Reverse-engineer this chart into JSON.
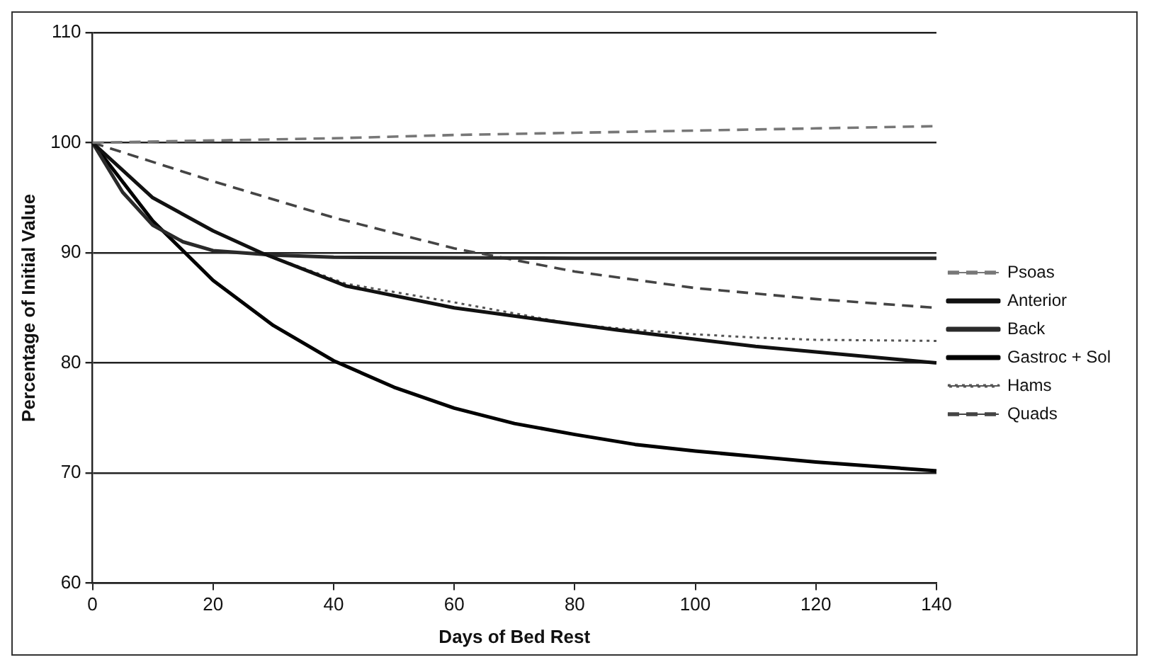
{
  "chart_data": {
    "type": "line",
    "xlabel": "Days of Bed Rest",
    "ylabel": "Percentage of Initial Value",
    "xlim": [
      0,
      140
    ],
    "xticks": [
      0,
      20,
      40,
      60,
      80,
      100,
      120,
      140
    ],
    "ylim": [
      60,
      110
    ],
    "yticks": [
      60,
      70,
      80,
      90,
      100,
      110
    ],
    "grid": "y",
    "legend": "right",
    "marker": "none",
    "series": [
      {
        "name": "Psoas",
        "color": "#777777",
        "line_style": "dashed",
        "x": [
          0,
          20,
          40,
          60,
          80,
          100,
          120,
          140
        ],
        "values": [
          100,
          100.2,
          100.4,
          100.7,
          100.9,
          101.1,
          101.3,
          101.5
        ]
      },
      {
        "name": "Anterior",
        "color": "#111111",
        "line_style": "solid",
        "x": [
          0,
          5,
          10,
          20,
          28,
          42,
          60,
          87,
          110,
          140
        ],
        "values": [
          100,
          97.5,
          95,
          92,
          90,
          87,
          85,
          83,
          81.5,
          80
        ]
      },
      {
        "name": "Back",
        "color": "#2a2a2a",
        "line_style": "solid",
        "x": [
          0,
          5,
          10,
          15,
          20,
          30,
          40,
          80,
          140
        ],
        "values": [
          100,
          95.5,
          92.5,
          91,
          90.2,
          89.8,
          89.6,
          89.5,
          89.5
        ]
      },
      {
        "name": "Gastroc + Sol",
        "color": "#000000",
        "line_style": "solid",
        "x": [
          0,
          10,
          20,
          30,
          40,
          50,
          60,
          70,
          80,
          90,
          100,
          110,
          120,
          130,
          140
        ],
        "values": [
          100,
          92.9,
          87.5,
          83.4,
          80.2,
          77.8,
          75.9,
          74.5,
          73.5,
          72.6,
          72,
          71.5,
          71,
          70.6,
          70.2
        ]
      },
      {
        "name": "Hams",
        "color": "#555555",
        "line_style": "dotted",
        "x": [
          0,
          10,
          20,
          28,
          42,
          60,
          70,
          80,
          90,
          100,
          110,
          120,
          140
        ],
        "values": [
          100,
          95,
          92,
          90,
          87.2,
          85.5,
          84.5,
          83.5,
          83,
          82.6,
          82.3,
          82.1,
          82
        ]
      },
      {
        "name": "Quads",
        "color": "#444444",
        "line_style": "dashed",
        "x": [
          0,
          20,
          40,
          60,
          80,
          100,
          120,
          140
        ],
        "values": [
          100,
          96.5,
          93.2,
          90.4,
          88.3,
          86.8,
          85.8,
          85
        ]
      }
    ]
  }
}
